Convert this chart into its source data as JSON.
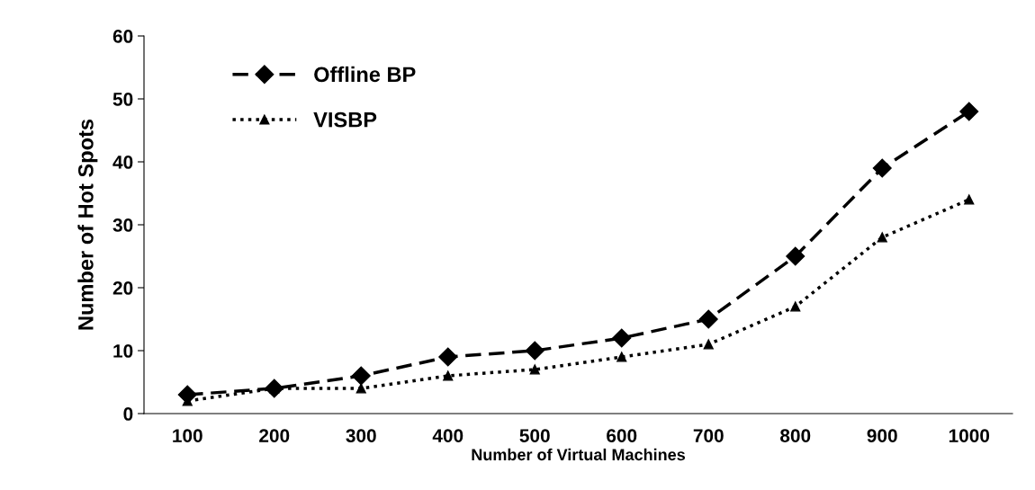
{
  "chart_data": {
    "type": "line",
    "xlabel": "Number of Virtual Machines",
    "ylabel": "Number of Hot Spots",
    "categories": [
      "100",
      "200",
      "300",
      "400",
      "500",
      "600",
      "700",
      "800",
      "900",
      "1000"
    ],
    "series": [
      {
        "name": "Offline BP",
        "color": "#000000",
        "values": [
          3,
          4,
          6,
          9,
          10,
          12,
          15,
          25,
          39,
          48
        ],
        "marker": "diamond",
        "line_style": "dashed"
      },
      {
        "name": "VISBP",
        "color": "#000000",
        "values": [
          2,
          4,
          4,
          6,
          7,
          9,
          11,
          17,
          28,
          34
        ],
        "marker": "triangle",
        "line_style": "dotted"
      }
    ],
    "ylim": [
      0,
      60
    ],
    "yticks": [
      0,
      10,
      20,
      30,
      40,
      50,
      60
    ],
    "grid": false,
    "legend": "top left"
  }
}
